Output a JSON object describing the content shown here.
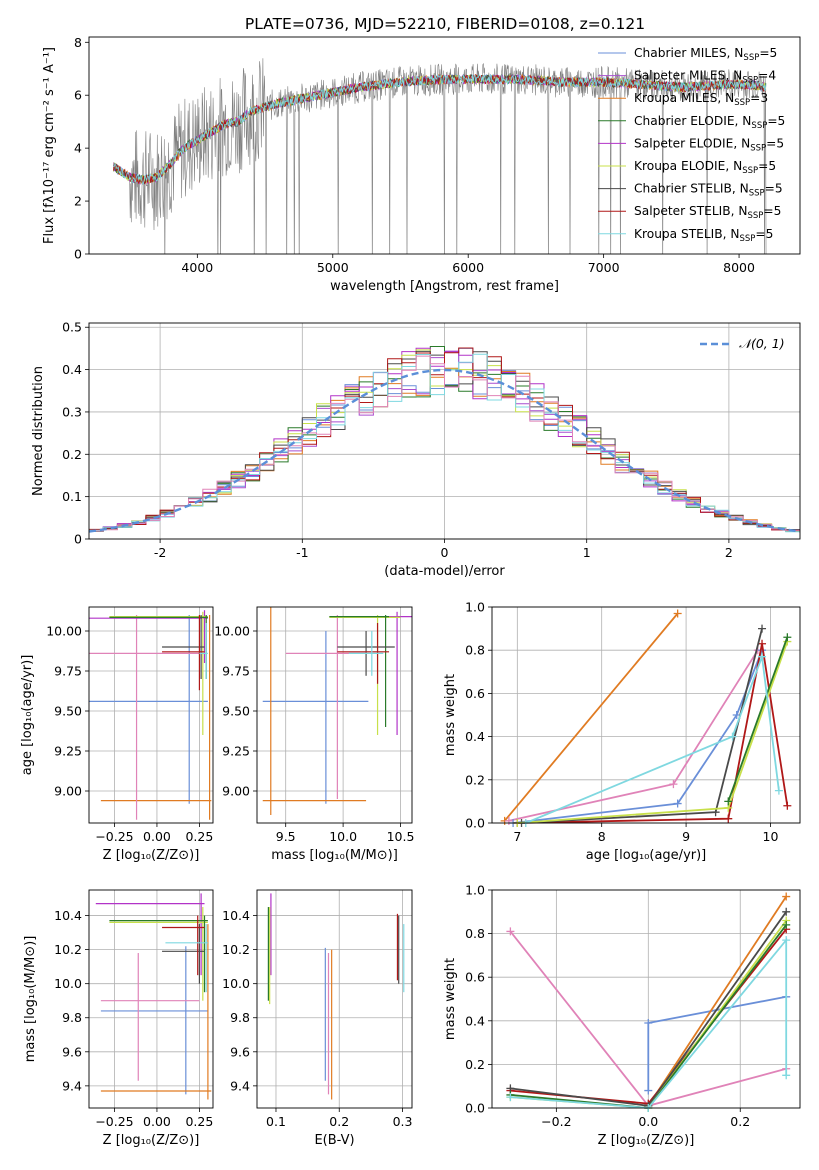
{
  "title": "PLATE=0736, MJD=52210, FIBERID=0108, z=0.121",
  "colors": {
    "Chabrier MILES": "#6a8fd8",
    "Salpeter MILES": "#a94fd0",
    "Kroupa MILES": "#e07b22",
    "Chabrier ELODIE": "#2a7a2a",
    "Salpeter ELODIE": "#b233c8",
    "Kroupa ELODIE": "#c8e04a",
    "Chabrier STELIB": "#4a4a4a",
    "Salpeter STELIB": "#b01818",
    "Kroupa STELIB": "#7fd8e0",
    "data": "#7f7f7f",
    "grid": "#b0b0b0",
    "extra": "#e083b8"
  },
  "chart_data": [
    {
      "id": "spectrum",
      "type": "line",
      "xlabel": "wavelength [Angstrom, rest frame]",
      "ylabel": "Flux [fλ10⁻¹⁷ erg cm⁻² s⁻¹ A⁻¹]",
      "xlim": [
        3200,
        8450
      ],
      "ylim": [
        0,
        8.2
      ],
      "xticks": [
        4000,
        5000,
        6000,
        7000,
        8000
      ],
      "yticks": [
        0,
        2,
        4,
        6,
        8
      ],
      "grid": false,
      "legend_placement": "top-right",
      "legend": [
        {
          "label": "Chabrier MILES, N_SSP=5",
          "name": "Chabrier MILES",
          "base": "Chabrier MILES, N",
          "sub": "SSP",
          "tail": "=5"
        },
        {
          "label": "Salpeter MILES, N_SSP=4",
          "name": "Salpeter MILES",
          "base": "Salpeter MILES, N",
          "sub": "SSP",
          "tail": "=4"
        },
        {
          "label": "Kroupa MILES, N_SSP=3",
          "name": "Kroupa MILES",
          "base": "Kroupa MILES, N",
          "sub": "SSP",
          "tail": "=3"
        },
        {
          "label": "Chabrier ELODIE, N_SSP=5",
          "name": "Chabrier ELODIE",
          "base": "Chabrier ELODIE, N",
          "sub": "SSP",
          "tail": "=5"
        },
        {
          "label": "Salpeter ELODIE, N_SSP=5",
          "name": "Salpeter ELODIE",
          "base": "Salpeter ELODIE, N",
          "sub": "SSP",
          "tail": "=5"
        },
        {
          "label": "Kroupa ELODIE, N_SSP=5",
          "name": "Kroupa ELODIE",
          "base": "Kroupa ELODIE, N",
          "sub": "SSP",
          "tail": "=5"
        },
        {
          "label": "Chabrier STELIB, N_SSP=5",
          "name": "Chabrier STELIB",
          "base": "Chabrier STELIB, N",
          "sub": "SSP",
          "tail": "=5"
        },
        {
          "label": "Salpeter STELIB, N_SSP=5",
          "name": "Salpeter STELIB",
          "base": "Salpeter STELIB, N",
          "sub": "SSP",
          "tail": "=5"
        },
        {
          "label": "Kroupa STELIB, N_SSP=5",
          "name": "Kroupa STELIB",
          "base": "Kroupa STELIB, N",
          "sub": "SSP",
          "tail": "=5"
        }
      ],
      "continuum": {
        "x": [
          3380,
          3500,
          3600,
          3700,
          3800,
          3900,
          4000,
          4100,
          4200,
          4300,
          4400,
          4600,
          4800,
          5000,
          5200,
          5500,
          5800,
          6100,
          6400,
          6700,
          7000,
          7300,
          7600,
          7900,
          8100,
          8200
        ],
        "y": [
          3.3,
          2.9,
          2.8,
          2.9,
          3.4,
          4.0,
          4.3,
          4.6,
          4.9,
          5.0,
          5.4,
          5.7,
          5.9,
          6.1,
          6.3,
          6.5,
          6.6,
          6.6,
          6.6,
          6.5,
          6.5,
          6.4,
          6.3,
          6.4,
          6.4,
          6.3
        ]
      },
      "model_range": [
        3380,
        8200
      ],
      "data_range": [
        3500,
        8200
      ],
      "data_noise_hi": 2.0,
      "data_noise_lo": 0.6
    },
    {
      "id": "residuals",
      "type": "line",
      "xlabel": "(data-model)/error",
      "ylabel": "Normed distribution",
      "xlim": [
        -2.5,
        2.5
      ],
      "ylim": [
        0,
        0.51
      ],
      "xticks": [
        -2,
        -1,
        0,
        1,
        2
      ],
      "yticks": [
        0.0,
        0.1,
        0.2,
        0.3,
        0.4,
        0.5
      ],
      "grid": true,
      "legend_placement": "top-right",
      "gaussian_label": "𝒩(0, 1)",
      "gaussian": {
        "mean": 0,
        "sigma": 1
      },
      "bin_width": 0.1
    },
    {
      "id": "age-vs-Z",
      "type": "scatter",
      "xlabel": "Z [log₁₀(Z/Z⊙)]",
      "ylabel": "age  [log₁₀(age/yr)]",
      "xlim": [
        -0.4,
        0.33
      ],
      "ylim": [
        8.8,
        10.15
      ],
      "xticks": [
        -0.25,
        0.0,
        0.25
      ],
      "xticklabels": [
        "−0.25",
        "0.00",
        "0.25"
      ],
      "yticks": [
        9.0,
        9.25,
        9.5,
        9.75,
        10.0
      ],
      "yticklabels": [
        "9.00",
        "9.25",
        "9.50",
        "9.75",
        "10.00"
      ],
      "grid": true
    },
    {
      "id": "age-vs-mass",
      "type": "scatter",
      "xlabel": "mass [log₁₀(M/M⊙)]",
      "ylabel": "",
      "xlim": [
        9.25,
        10.6
      ],
      "ylim": [
        8.8,
        10.15
      ],
      "xticks": [
        9.5,
        10.0,
        10.5
      ],
      "xticklabels": [
        "9.5",
        "10.0",
        "10.5"
      ],
      "yticks": [
        9.0,
        9.25,
        9.5,
        9.75,
        10.0
      ],
      "yticklabels": [
        "9.00",
        "9.25",
        "9.50",
        "9.75",
        "10.00"
      ],
      "grid": true
    },
    {
      "id": "weight-vs-age",
      "type": "line",
      "xlabel": "age  [log₁₀(age/yr)]",
      "ylabel": "mass weight",
      "xlim": [
        6.7,
        10.35
      ],
      "ylim": [
        0,
        1.0
      ],
      "xticks": [
        7,
        8,
        9,
        10
      ],
      "xticklabels": [
        "7",
        "8",
        "9",
        "10"
      ],
      "yticks": [
        0.0,
        0.2,
        0.4,
        0.6,
        0.8,
        1.0
      ],
      "yticklabels": [
        "0.0",
        "0.2",
        "0.4",
        "0.6",
        "0.8",
        "1.0"
      ],
      "grid": true,
      "series": [
        {
          "name": "Kroupa MILES",
          "x": [
            6.85,
            8.9
          ],
          "y": [
            0.01,
            0.97
          ]
        },
        {
          "name": "extra",
          "x": [
            6.9,
            8.85,
            9.85
          ],
          "y": [
            0.01,
            0.18,
            0.8
          ]
        },
        {
          "name": "Chabrier MILES",
          "x": [
            6.95,
            8.9,
            9.6,
            9.9
          ],
          "y": [
            0.0,
            0.09,
            0.5,
            0.8
          ]
        },
        {
          "name": "Salpeter STELIB",
          "x": [
            7.0,
            9.5,
            9.9,
            10.2
          ],
          "y": [
            0.0,
            0.02,
            0.83,
            0.08
          ]
        },
        {
          "name": "Chabrier STELIB",
          "x": [
            7.05,
            9.35,
            9.9
          ],
          "y": [
            0.0,
            0.05,
            0.9
          ]
        },
        {
          "name": "Kroupa ELODIE",
          "x": [
            7.0,
            9.5,
            10.2
          ],
          "y": [
            0.0,
            0.07,
            0.84
          ]
        },
        {
          "name": "Chabrier ELODIE",
          "x": [
            9.5,
            10.2
          ],
          "y": [
            0.1,
            0.86
          ]
        },
        {
          "name": "Kroupa STELIB",
          "x": [
            7.1,
            9.55,
            9.9,
            10.1
          ],
          "y": [
            0.0,
            0.4,
            0.77,
            0.15
          ]
        }
      ]
    },
    {
      "id": "mass-vs-Z",
      "type": "scatter",
      "xlabel": "Z [log₁₀(Z/Z⊙)]",
      "ylabel": "mass [log₁₀(M/M⊙)]",
      "xlim": [
        -0.4,
        0.33
      ],
      "ylim": [
        9.27,
        10.55
      ],
      "xticks": [
        -0.25,
        0.0,
        0.25
      ],
      "xticklabels": [
        "−0.25",
        "0.00",
        "0.25"
      ],
      "yticks": [
        9.4,
        9.6,
        9.8,
        10.0,
        10.2,
        10.4
      ],
      "yticklabels": [
        "9.4",
        "9.6",
        "9.8",
        "10.0",
        "10.2",
        "10.4"
      ],
      "grid": true
    },
    {
      "id": "mass-vs-ebv",
      "type": "scatter",
      "xlabel": "E(B-V)",
      "ylabel": "",
      "xlim": [
        0.07,
        0.315
      ],
      "ylim": [
        9.27,
        10.55
      ],
      "xticks": [
        0.1,
        0.2,
        0.3
      ],
      "xticklabels": [
        "0.1",
        "0.2",
        "0.3"
      ],
      "yticks": [
        9.4,
        9.6,
        9.8,
        10.0,
        10.2,
        10.4
      ],
      "yticklabels": [
        "9.4",
        "9.6",
        "9.8",
        "10.0",
        "10.2",
        "10.4"
      ],
      "grid": true
    },
    {
      "id": "weight-vs-Z",
      "type": "line",
      "xlabel": "Z [log₁₀(Z/Z⊙)]",
      "ylabel": "mass weight",
      "xlim": [
        -0.34,
        0.33
      ],
      "ylim": [
        0,
        1.0
      ],
      "xticks": [
        -0.2,
        0.0,
        0.2
      ],
      "xticklabels": [
        "−0.2",
        "0.0",
        "0.2"
      ],
      "yticks": [
        0.0,
        0.2,
        0.4,
        0.6,
        0.8,
        1.0
      ],
      "yticklabels": [
        "0.0",
        "0.2",
        "0.4",
        "0.6",
        "0.8",
        "1.0"
      ],
      "grid": true,
      "series": [
        {
          "name": "extra",
          "x": [
            -0.3,
            0.0,
            0.3
          ],
          "y": [
            0.81,
            0.01,
            0.18
          ]
        },
        {
          "name": "Chabrier MILES",
          "x": [
            0.0,
            0.0,
            0.3
          ],
          "y": [
            0.08,
            0.39,
            0.51
          ]
        },
        {
          "name": "Kroupa MILES",
          "x": [
            0.0,
            0.3
          ],
          "y": [
            0.01,
            0.97
          ]
        },
        {
          "name": "Salpeter STELIB",
          "x": [
            -0.3,
            0.0,
            0.3
          ],
          "y": [
            0.08,
            0.02,
            0.82
          ]
        },
        {
          "name": "Chabrier STELIB",
          "x": [
            -0.3,
            0.0,
            0.3
          ],
          "y": [
            0.09,
            0.01,
            0.9
          ]
        },
        {
          "name": "Kroupa ELODIE",
          "x": [
            -0.3,
            0.0,
            0.3
          ],
          "y": [
            0.05,
            0.0,
            0.86
          ]
        },
        {
          "name": "Chabrier ELODIE",
          "x": [
            -0.3,
            0.0,
            0.3
          ],
          "y": [
            0.06,
            0.0,
            0.84
          ]
        },
        {
          "name": "Kroupa STELIB",
          "x": [
            -0.3,
            0.0,
            0.3,
            0.3
          ],
          "y": [
            0.05,
            0.0,
            0.77,
            0.15
          ]
        }
      ]
    }
  ]
}
